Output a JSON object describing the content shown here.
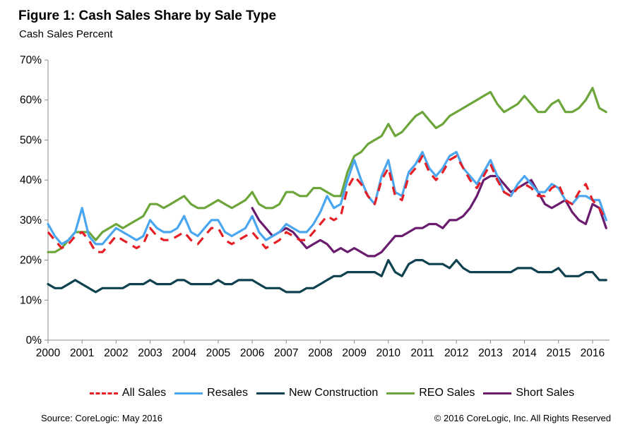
{
  "title": "Figure 1: Cash Sales Share by Sale Type",
  "subtitle": "Cash Sales Percent",
  "source": "Source: CoreLogic: May 2016",
  "copyright": "© 2016 CoreLogic, Inc. All Rights Reserved",
  "chart_data": {
    "type": "line",
    "ylabel": "Cash Sales Percent",
    "ylim": [
      0,
      70
    ],
    "xlim": [
      2000,
      2016.5
    ],
    "y_ticks": [
      "0%",
      "10%",
      "20%",
      "30%",
      "40%",
      "50%",
      "60%",
      "70%"
    ],
    "x_ticks": [
      "2000",
      "2001",
      "2002",
      "2003",
      "2004",
      "2005",
      "2006",
      "2007",
      "2008",
      "2009",
      "2010",
      "2011",
      "2012",
      "2013",
      "2014",
      "2015",
      "2016"
    ],
    "grid": false,
    "legend": "bottom",
    "series": [
      {
        "name": "All Sales",
        "color": "#e41f26",
        "dash": true,
        "x": [
          2000.0,
          2000.2,
          2000.4,
          2000.6,
          2000.8,
          2001.0,
          2001.2,
          2001.4,
          2001.6,
          2001.8,
          2002.0,
          2002.2,
          2002.4,
          2002.6,
          2002.8,
          2003.0,
          2003.2,
          2003.4,
          2003.6,
          2003.8,
          2004.0,
          2004.2,
          2004.4,
          2004.6,
          2004.8,
          2005.0,
          2005.2,
          2005.4,
          2005.6,
          2005.8,
          2006.0,
          2006.2,
          2006.4,
          2006.6,
          2006.8,
          2007.0,
          2007.2,
          2007.4,
          2007.6,
          2007.8,
          2008.0,
          2008.2,
          2008.4,
          2008.6,
          2008.8,
          2009.0,
          2009.2,
          2009.4,
          2009.6,
          2009.8,
          2010.0,
          2010.2,
          2010.4,
          2010.6,
          2010.8,
          2011.0,
          2011.2,
          2011.4,
          2011.6,
          2011.8,
          2012.0,
          2012.2,
          2012.4,
          2012.6,
          2012.8,
          2013.0,
          2013.2,
          2013.4,
          2013.6,
          2013.8,
          2014.0,
          2014.2,
          2014.4,
          2014.6,
          2014.8,
          2015.0,
          2015.2,
          2015.4,
          2015.6,
          2015.8,
          2016.0,
          2016.2,
          2016.4
        ],
        "y": [
          27,
          25,
          23,
          24,
          26,
          27,
          25,
          22,
          22,
          24,
          26,
          25,
          24,
          23,
          24,
          28,
          26,
          25,
          25,
          26,
          27,
          25,
          24,
          26,
          28,
          28,
          25,
          24,
          25,
          26,
          27,
          25,
          23,
          24,
          25,
          27,
          26,
          25,
          25,
          27,
          29,
          31,
          30,
          31,
          38,
          41,
          39,
          36,
          34,
          40,
          43,
          36,
          35,
          41,
          43,
          46,
          42,
          40,
          42,
          45,
          46,
          43,
          40,
          38,
          41,
          44,
          40,
          37,
          36,
          38,
          39,
          38,
          36,
          36,
          38,
          39,
          35,
          34,
          37,
          39,
          35,
          33,
          30
        ]
      },
      {
        "name": "Resales",
        "color": "#4aa6ef",
        "dash": false,
        "x": [
          2000.0,
          2000.2,
          2000.4,
          2000.6,
          2000.8,
          2001.0,
          2001.2,
          2001.4,
          2001.6,
          2001.8,
          2002.0,
          2002.2,
          2002.4,
          2002.6,
          2002.8,
          2003.0,
          2003.2,
          2003.4,
          2003.6,
          2003.8,
          2004.0,
          2004.2,
          2004.4,
          2004.6,
          2004.8,
          2005.0,
          2005.2,
          2005.4,
          2005.6,
          2005.8,
          2006.0,
          2006.2,
          2006.4,
          2006.6,
          2006.8,
          2007.0,
          2007.2,
          2007.4,
          2007.6,
          2007.8,
          2008.0,
          2008.2,
          2008.4,
          2008.6,
          2008.8,
          2009.0,
          2009.2,
          2009.4,
          2009.6,
          2009.8,
          2010.0,
          2010.2,
          2010.4,
          2010.6,
          2010.8,
          2011.0,
          2011.2,
          2011.4,
          2011.6,
          2011.8,
          2012.0,
          2012.2,
          2012.4,
          2012.6,
          2012.8,
          2013.0,
          2013.2,
          2013.4,
          2013.6,
          2013.8,
          2014.0,
          2014.2,
          2014.4,
          2014.6,
          2014.8,
          2015.0,
          2015.2,
          2015.4,
          2015.6,
          2015.8,
          2016.0,
          2016.2,
          2016.4
        ],
        "y": [
          29,
          26,
          24,
          25,
          27,
          33,
          26,
          24,
          24,
          26,
          28,
          27,
          26,
          25,
          26,
          30,
          28,
          27,
          27,
          28,
          31,
          27,
          26,
          28,
          30,
          30,
          27,
          26,
          27,
          28,
          31,
          27,
          25,
          26,
          27,
          29,
          28,
          27,
          27,
          29,
          32,
          36,
          33,
          34,
          40,
          45,
          40,
          36,
          34,
          41,
          45,
          37,
          36,
          42,
          44,
          47,
          43,
          41,
          43,
          46,
          47,
          43,
          41,
          39,
          42,
          45,
          41,
          37,
          36,
          39,
          41,
          39,
          37,
          37,
          39,
          38,
          35,
          34,
          36,
          36,
          35,
          35,
          30
        ]
      },
      {
        "name": "New Construction",
        "color": "#0f4150",
        "dash": false,
        "x": [
          2000.0,
          2000.2,
          2000.4,
          2000.6,
          2000.8,
          2001.0,
          2001.2,
          2001.4,
          2001.6,
          2001.8,
          2002.0,
          2002.2,
          2002.4,
          2002.6,
          2002.8,
          2003.0,
          2003.2,
          2003.4,
          2003.6,
          2003.8,
          2004.0,
          2004.2,
          2004.4,
          2004.6,
          2004.8,
          2005.0,
          2005.2,
          2005.4,
          2005.6,
          2005.8,
          2006.0,
          2006.2,
          2006.4,
          2006.6,
          2006.8,
          2007.0,
          2007.2,
          2007.4,
          2007.6,
          2007.8,
          2008.0,
          2008.2,
          2008.4,
          2008.6,
          2008.8,
          2009.0,
          2009.2,
          2009.4,
          2009.6,
          2009.8,
          2010.0,
          2010.2,
          2010.4,
          2010.6,
          2010.8,
          2011.0,
          2011.2,
          2011.4,
          2011.6,
          2011.8,
          2012.0,
          2012.2,
          2012.4,
          2012.6,
          2012.8,
          2013.0,
          2013.2,
          2013.4,
          2013.6,
          2013.8,
          2014.0,
          2014.2,
          2014.4,
          2014.6,
          2014.8,
          2015.0,
          2015.2,
          2015.4,
          2015.6,
          2015.8,
          2016.0,
          2016.2,
          2016.4
        ],
        "y": [
          14,
          13,
          13,
          14,
          15,
          14,
          13,
          12,
          13,
          13,
          13,
          13,
          14,
          14,
          14,
          15,
          14,
          14,
          14,
          15,
          15,
          14,
          14,
          14,
          14,
          15,
          14,
          14,
          15,
          15,
          15,
          14,
          13,
          13,
          13,
          12,
          12,
          12,
          13,
          13,
          14,
          15,
          16,
          16,
          17,
          17,
          17,
          17,
          17,
          16,
          20,
          17,
          16,
          19,
          20,
          20,
          19,
          19,
          19,
          18,
          20,
          18,
          17,
          17,
          17,
          17,
          17,
          17,
          17,
          18,
          18,
          18,
          17,
          17,
          17,
          18,
          16,
          16,
          16,
          17,
          17,
          15,
          15
        ]
      },
      {
        "name": "REO Sales",
        "color": "#6ca53a",
        "dash": false,
        "x": [
          2000.0,
          2000.2,
          2000.4,
          2000.6,
          2000.8,
          2001.0,
          2001.2,
          2001.4,
          2001.6,
          2001.8,
          2002.0,
          2002.2,
          2002.4,
          2002.6,
          2002.8,
          2003.0,
          2003.2,
          2003.4,
          2003.6,
          2003.8,
          2004.0,
          2004.2,
          2004.4,
          2004.6,
          2004.8,
          2005.0,
          2005.2,
          2005.4,
          2005.6,
          2005.8,
          2006.0,
          2006.2,
          2006.4,
          2006.6,
          2006.8,
          2007.0,
          2007.2,
          2007.4,
          2007.6,
          2007.8,
          2008.0,
          2008.2,
          2008.4,
          2008.6,
          2008.8,
          2009.0,
          2009.2,
          2009.4,
          2009.6,
          2009.8,
          2010.0,
          2010.2,
          2010.4,
          2010.6,
          2010.8,
          2011.0,
          2011.2,
          2011.4,
          2011.6,
          2011.8,
          2012.0,
          2012.2,
          2012.4,
          2012.6,
          2012.8,
          2013.0,
          2013.2,
          2013.4,
          2013.6,
          2013.8,
          2014.0,
          2014.2,
          2014.4,
          2014.6,
          2014.8,
          2015.0,
          2015.2,
          2015.4,
          2015.6,
          2015.8,
          2016.0,
          2016.2,
          2016.4
        ],
        "y": [
          22,
          22,
          23,
          25,
          27,
          27,
          27,
          25,
          27,
          28,
          29,
          28,
          29,
          30,
          31,
          34,
          34,
          33,
          34,
          35,
          36,
          34,
          33,
          33,
          34,
          35,
          34,
          33,
          34,
          35,
          37,
          34,
          33,
          33,
          34,
          37,
          37,
          36,
          36,
          38,
          38,
          37,
          36,
          36,
          42,
          46,
          47,
          49,
          50,
          51,
          54,
          51,
          52,
          54,
          56,
          57,
          55,
          53,
          54,
          56,
          57,
          58,
          59,
          60,
          61,
          62,
          59,
          57,
          58,
          59,
          61,
          59,
          57,
          57,
          59,
          60,
          57,
          57,
          58,
          60,
          63,
          58,
          57
        ]
      },
      {
        "name": "Short Sales",
        "color": "#6a1b6e",
        "dash": false,
        "x": [
          2006.0,
          2006.2,
          2006.4,
          2006.6,
          2006.8,
          2007.0,
          2007.2,
          2007.4,
          2007.6,
          2007.8,
          2008.0,
          2008.2,
          2008.4,
          2008.6,
          2008.8,
          2009.0,
          2009.2,
          2009.4,
          2009.6,
          2009.8,
          2010.0,
          2010.2,
          2010.4,
          2010.6,
          2010.8,
          2011.0,
          2011.2,
          2011.4,
          2011.6,
          2011.8,
          2012.0,
          2012.2,
          2012.4,
          2012.6,
          2012.8,
          2013.0,
          2013.2,
          2013.4,
          2013.6,
          2013.8,
          2014.0,
          2014.2,
          2014.4,
          2014.6,
          2014.8,
          2015.0,
          2015.2,
          2015.4,
          2015.6,
          2015.8,
          2016.0,
          2016.2,
          2016.4
        ],
        "y": [
          33,
          30,
          28,
          26,
          27,
          28,
          27,
          25,
          23,
          24,
          25,
          24,
          22,
          23,
          22,
          23,
          22,
          21,
          21,
          22,
          24,
          26,
          26,
          27,
          28,
          28,
          29,
          29,
          28,
          30,
          30,
          31,
          33,
          36,
          40,
          41,
          41,
          39,
          37,
          38,
          39,
          40,
          37,
          34,
          33,
          34,
          35,
          32,
          30,
          29,
          34,
          33,
          28
        ]
      }
    ]
  }
}
